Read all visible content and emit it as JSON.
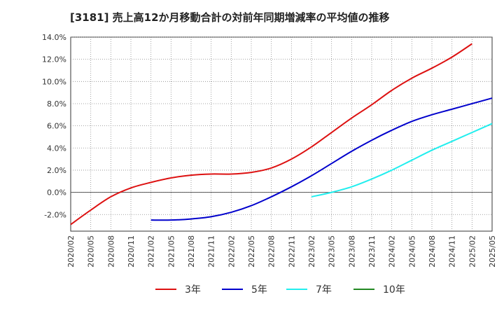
{
  "chart_data": {
    "type": "line",
    "title": "[3181]  売上高12か月移動合計の対前年同期増減率の平均値の推移",
    "xlabel": "",
    "ylabel": "",
    "ylim": [
      -3.5,
      14.0
    ],
    "y_ticks": [
      -2.0,
      0.0,
      2.0,
      4.0,
      6.0,
      8.0,
      10.0,
      12.0,
      14.0
    ],
    "y_tick_labels": [
      "-2.0%",
      "0.0%",
      "2.0%",
      "4.0%",
      "6.0%",
      "8.0%",
      "10.0%",
      "12.0%",
      "14.0%"
    ],
    "x_tick_labels": [
      "2020/02",
      "2020/05",
      "2020/08",
      "2020/11",
      "2021/02",
      "2021/05",
      "2021/08",
      "2021/11",
      "2022/02",
      "2022/05",
      "2022/08",
      "2022/11",
      "2023/02",
      "2023/05",
      "2023/08",
      "2023/11",
      "2024/02",
      "2024/05",
      "2024/08",
      "2024/11",
      "2025/02",
      "2025/05"
    ],
    "grid": true,
    "legend_position": "bottom",
    "series": [
      {
        "name": "3年",
        "color": "#dd1111",
        "start_index": 0,
        "values": [
          -2.9,
          -1.6,
          -0.4,
          0.4,
          0.9,
          1.3,
          1.55,
          1.65,
          1.65,
          1.8,
          2.2,
          3.0,
          4.1,
          5.4,
          6.7,
          7.9,
          9.2,
          10.3,
          11.2,
          12.2,
          13.4
        ]
      },
      {
        "name": "5年",
        "color": "#0000cc",
        "start_index": 4,
        "values": [
          -2.5,
          -2.5,
          -2.4,
          -2.2,
          -1.8,
          -1.2,
          -0.4,
          0.5,
          1.5,
          2.6,
          3.7,
          4.7,
          5.6,
          6.4,
          7.0,
          7.5,
          8.0,
          8.5
        ]
      },
      {
        "name": "7年",
        "color": "#22eeee",
        "start_index": 12,
        "values": [
          -0.4,
          0.0,
          0.5,
          1.2,
          2.0,
          2.9,
          3.8,
          4.6,
          5.4,
          6.2
        ]
      },
      {
        "name": "10年",
        "color": "#228822",
        "start_index": 0,
        "values": []
      }
    ]
  }
}
